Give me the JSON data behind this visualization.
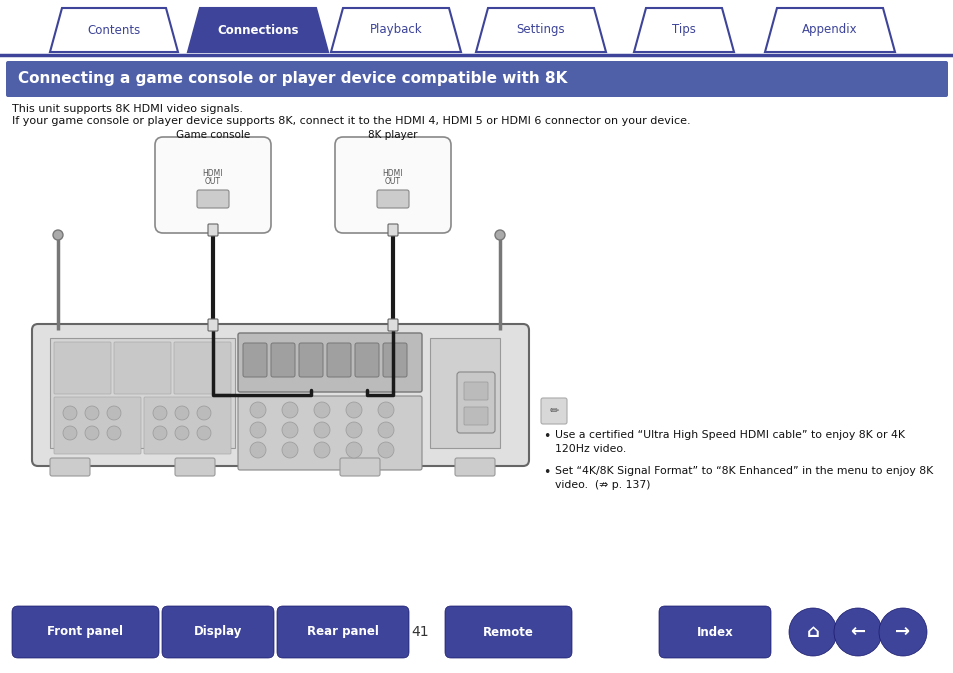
{
  "page_bg": "#ffffff",
  "nav_tabs": [
    "Contents",
    "Connections",
    "Playback",
    "Settings",
    "Tips",
    "Appendix"
  ],
  "nav_active_idx": 1,
  "nav_active_bg": "#3d4499",
  "nav_inactive_bg": "#ffffff",
  "nav_text_active": "#ffffff",
  "nav_text_inactive": "#3d4499",
  "nav_border": "#3d4499",
  "title_text": "Connecting a game console or player device compatible with 8K",
  "title_bg": "#5060a8",
  "title_text_color": "#ffffff",
  "body_line1": "This unit supports 8K HDMI video signals.",
  "body_line2": "If your game console or player device supports 8K, connect it to the HDMI 4, HDMI 5 or HDMI 6 connector on your device.",
  "body_text_color": "#111111",
  "note_bullet1a": "Use a certified “Ultra High Speed HDMI cable” to enjoy 8K or 4K",
  "note_bullet1b": "120Hz video.",
  "note_bullet2a": "Set “4K/8K Signal Format” to “8K Enhanced” in the menu to enjoy 8K",
  "note_bullet2b": "video.  (⇏ p. 137)",
  "note_text_color": "#111111",
  "label_game_console": "Game console",
  "label_8k_player": "8K player",
  "bottom_buttons": [
    "Front panel",
    "Display",
    "Rear panel",
    "Remote",
    "Index"
  ],
  "bottom_btn_bg": "#3d4499",
  "bottom_btn_text": "#ffffff",
  "page_number": "41"
}
